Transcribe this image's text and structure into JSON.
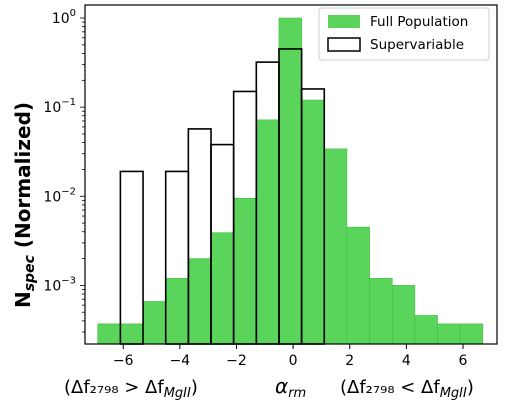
{
  "chart_data": {
    "type": "bar",
    "ylabel": {
      "main": "N",
      "sub": "spec",
      "rest": " (Normalized)"
    },
    "xlabel": {
      "left": "(Δf₂₇₉₈ > Δf",
      "left_sub": "MgII",
      "left_close": ")",
      "center": "α",
      "center_sub": "rm",
      "right": "(Δf₂₇₉₈ < Δf",
      "right_sub": "MgII",
      "right_close": ")"
    },
    "yscale": "log",
    "ylim": [
      0.00022,
      1.4
    ],
    "xlim": [
      -7.35,
      7.2
    ],
    "x_ticks": [
      "−6",
      "−4",
      "−2",
      "0",
      "2",
      "4",
      "6"
    ],
    "y_ticks": [
      {
        "base": "10",
        "exp": "0"
      },
      {
        "base": "10",
        "exp": "−1"
      },
      {
        "base": "10",
        "exp": "−2"
      },
      {
        "base": "10",
        "exp": "−3"
      }
    ],
    "legend_position": "top-right",
    "colors": {
      "full": "#5ad45a",
      "full_edge": "#3fbf3f",
      "super_edge": "#000000"
    },
    "series": [
      {
        "name": "Full Population",
        "style": "filled",
        "bins": [
          {
            "x0": -6.9,
            "x1": -6.1,
            "value": 0.00037
          },
          {
            "x0": -6.1,
            "x1": -5.3,
            "value": 0.00037
          },
          {
            "x0": -5.3,
            "x1": -4.5,
            "value": 0.00066
          },
          {
            "x0": -4.5,
            "x1": -3.7,
            "value": 0.0012
          },
          {
            "x0": -3.7,
            "x1": -2.9,
            "value": 0.002
          },
          {
            "x0": -2.9,
            "x1": -2.1,
            "value": 0.0039
          },
          {
            "x0": -2.1,
            "x1": -1.3,
            "value": 0.0095
          },
          {
            "x0": -1.3,
            "x1": -0.5,
            "value": 0.072
          },
          {
            "x0": -0.5,
            "x1": 0.3,
            "value": 1.0
          },
          {
            "x0": 0.3,
            "x1": 1.1,
            "value": 0.12
          },
          {
            "x0": 1.1,
            "x1": 1.9,
            "value": 0.034
          },
          {
            "x0": 1.9,
            "x1": 2.7,
            "value": 0.0045
          },
          {
            "x0": 2.7,
            "x1": 3.5,
            "value": 0.0012
          },
          {
            "x0": 3.5,
            "x1": 4.3,
            "value": 0.001
          },
          {
            "x0": 4.3,
            "x1": 5.1,
            "value": 0.00046
          },
          {
            "x0": 5.1,
            "x1": 5.9,
            "value": 0.00037
          },
          {
            "x0": 5.9,
            "x1": 6.7,
            "value": 0.00037
          }
        ]
      },
      {
        "name": "Supervariable",
        "style": "outline",
        "bins": [
          {
            "x0": -6.1,
            "x1": -5.3,
            "value": 0.019
          },
          {
            "x0": -5.3,
            "x1": -4.5,
            "value": 0.00022
          },
          {
            "x0": -4.5,
            "x1": -3.7,
            "value": 0.019
          },
          {
            "x0": -3.7,
            "x1": -2.9,
            "value": 0.057
          },
          {
            "x0": -2.9,
            "x1": -2.1,
            "value": 0.038
          },
          {
            "x0": -2.1,
            "x1": -1.3,
            "value": 0.15
          },
          {
            "x0": -1.3,
            "x1": -0.5,
            "value": 0.32
          },
          {
            "x0": -0.5,
            "x1": 0.3,
            "value": 0.45
          },
          {
            "x0": 0.3,
            "x1": 1.1,
            "value": 0.16
          }
        ]
      }
    ]
  }
}
